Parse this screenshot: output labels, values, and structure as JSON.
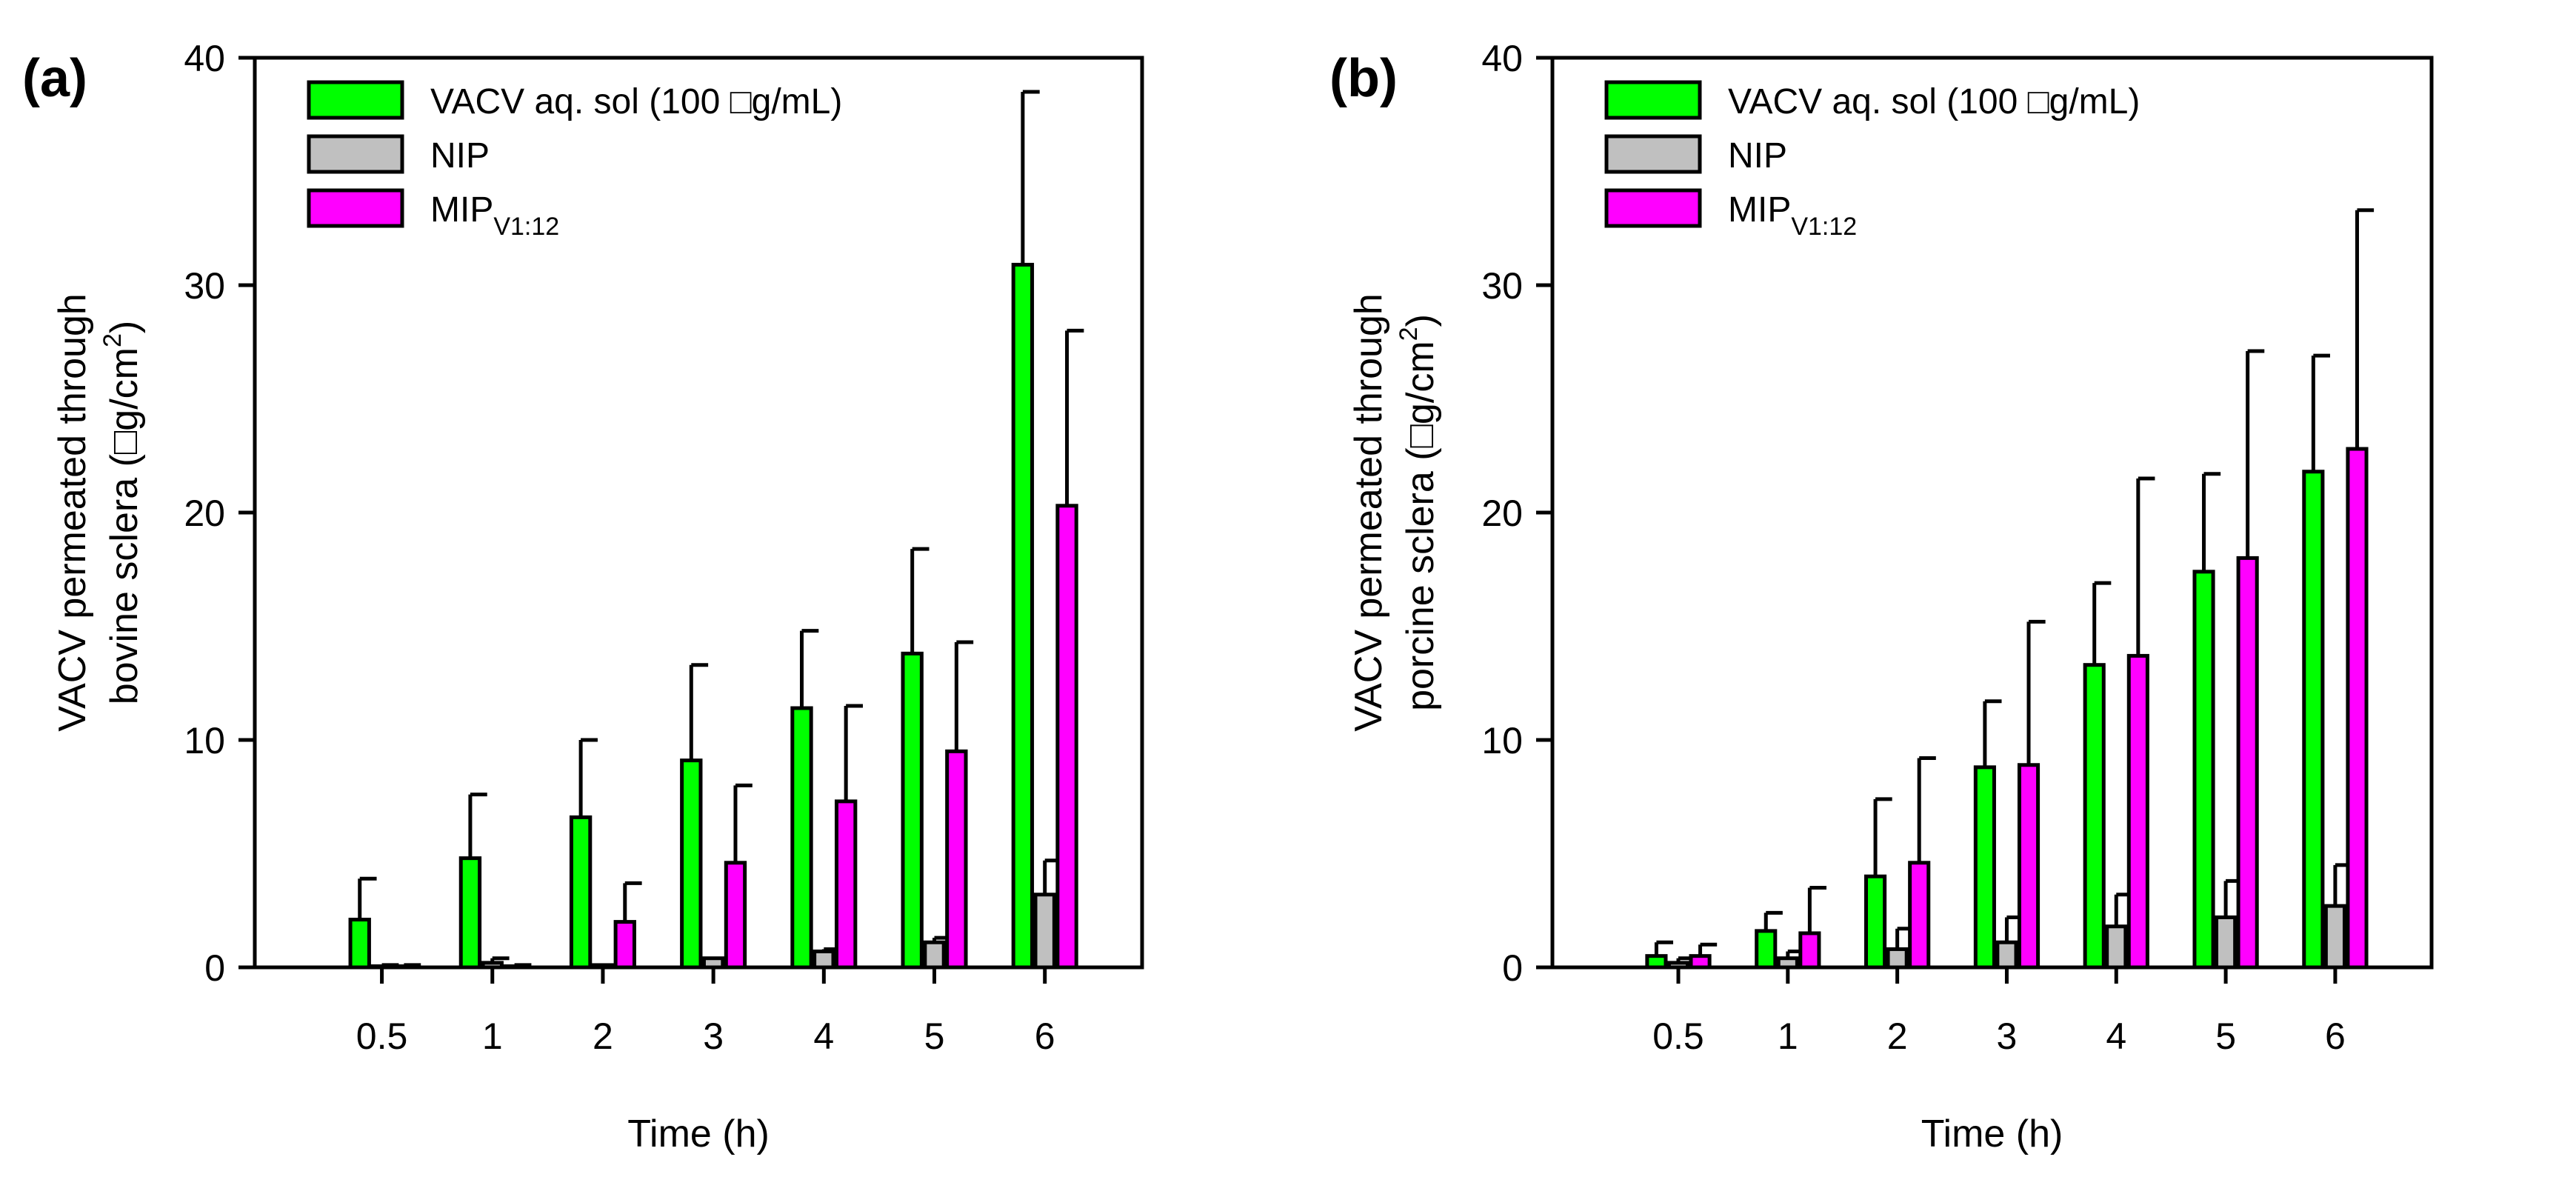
{
  "chart_data": [
    {
      "type": "bar",
      "panel_label": "(a)",
      "categories": [
        "0.5",
        "1",
        "2",
        "3",
        "4",
        "5",
        "6"
      ],
      "xlabel": "Time (h)",
      "ylabel_line1": "VACV permeated through",
      "ylabel_line2": "bovine sclera (□g/cm",
      "ylabel_sup": "2",
      "ylabel_end": ")",
      "ylim": [
        0,
        40
      ],
      "yticks": [
        0,
        10,
        20,
        30,
        40
      ],
      "legend_position": "top-left",
      "series": [
        {
          "name": "VACV aq. sol (100 □g/mL)",
          "sub": "",
          "color": "#00ff00",
          "values": [
            2.1,
            4.8,
            6.6,
            9.1,
            11.4,
            13.8,
            30.9
          ],
          "err_top": [
            3.9,
            7.6,
            10.0,
            13.3,
            14.8,
            18.4,
            38.5
          ]
        },
        {
          "name": "NIP",
          "sub": "",
          "color": "#c0c0c0",
          "values": [
            0.05,
            0.2,
            0.1,
            0.4,
            0.7,
            1.1,
            3.2
          ],
          "err_top": [
            0.1,
            0.4,
            0.1,
            0.4,
            0.8,
            1.3,
            4.7
          ]
        },
        {
          "name": "MIP",
          "sub": "V1:12",
          "color": "#ff00ff",
          "values": [
            0.05,
            0.05,
            2.0,
            4.6,
            7.3,
            9.5,
            20.3
          ],
          "err_top": [
            0.1,
            0.1,
            3.7,
            8.0,
            11.5,
            14.3,
            28.0
          ]
        }
      ]
    },
    {
      "type": "bar",
      "panel_label": "(b)",
      "categories": [
        "0.5",
        "1",
        "2",
        "3",
        "4",
        "5",
        "6"
      ],
      "xlabel": "Time (h)",
      "ylabel_line1": "VACV permeated through",
      "ylabel_line2": "porcine sclera (□g/cm",
      "ylabel_sup": "2",
      "ylabel_end": ")",
      "ylim": [
        0,
        40
      ],
      "yticks": [
        0,
        10,
        20,
        30,
        40
      ],
      "legend_position": "top-left",
      "series": [
        {
          "name": "VACV aq. sol (100 □g/mL)",
          "sub": "",
          "color": "#00ff00",
          "values": [
            0.5,
            1.6,
            4.0,
            8.8,
            13.3,
            17.4,
            21.8
          ],
          "err_top": [
            1.1,
            2.4,
            7.4,
            11.7,
            16.9,
            21.7,
            26.9
          ]
        },
        {
          "name": "NIP",
          "sub": "",
          "color": "#c0c0c0",
          "values": [
            0.2,
            0.4,
            0.8,
            1.1,
            1.8,
            2.2,
            2.7
          ],
          "err_top": [
            0.4,
            0.7,
            1.7,
            2.2,
            3.2,
            3.8,
            4.5
          ]
        },
        {
          "name": "MIP",
          "sub": "V1:12",
          "color": "#ff00ff",
          "values": [
            0.5,
            1.5,
            4.6,
            8.9,
            13.7,
            18.0,
            22.8
          ],
          "err_top": [
            1.0,
            3.5,
            9.2,
            15.2,
            21.5,
            27.1,
            33.3
          ]
        }
      ]
    }
  ]
}
